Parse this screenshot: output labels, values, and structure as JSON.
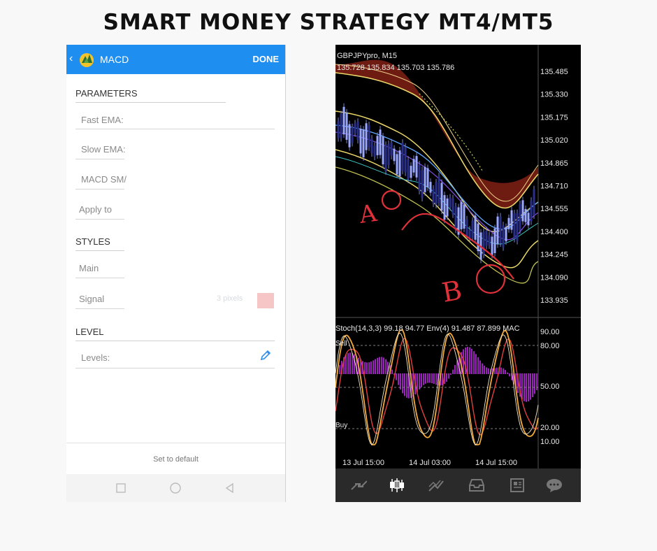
{
  "headline": "SMART MONEY STRATEGY MT4/MT5",
  "settings": {
    "back_icon": "chevron-left-icon",
    "app_icon": "metatrader-logo-icon",
    "title": "MACD",
    "done_label": "DONE",
    "accent_color": "#1f8ef1",
    "sections": {
      "parameters": "PARAMETERS",
      "styles": "STYLES",
      "level": "LEVEL"
    },
    "fields": {
      "fast_ema": "Fast EMA:",
      "slow_ema": "Slow EMA:",
      "macd_sma": "MACD SM/",
      "apply_to": "Apply to",
      "main": "Main",
      "signal": "Signal",
      "signal_width": "3 pixels",
      "levels": "Levels:"
    },
    "edit_icon": "pencil-icon",
    "set_default": "Set to default",
    "nav": [
      "square-icon",
      "circle-icon",
      "triangle-back-icon"
    ]
  },
  "chart": {
    "symbol": "GBPJPYpro, M15",
    "ohlc": "135.728 135.834 135.703 135.786",
    "price_ticks": [
      "135.485",
      "135.330",
      "135.175",
      "135.020",
      "134.865",
      "134.710",
      "134.555",
      "134.400",
      "134.245",
      "134.090",
      "133.935"
    ],
    "annotation_a": "A",
    "annotation_b": "B",
    "indicator_header": "Stoch(14,3,3) 99.18 94.77 Env(4) 91.487 87.899 MAC",
    "sell_label": "Sell",
    "buy_label": "Buy",
    "osc_ticks": [
      "90.00",
      "80.00",
      "50.00",
      "20.00",
      "10.00"
    ],
    "time_ticks": [
      "13 Jul 15:00",
      "14 Jul 03:00",
      "14 Jul 15:00"
    ],
    "toolbar_icons": [
      "quotes-icon",
      "candlestick-chart-icon",
      "trade-icon",
      "history-inbox-icon",
      "news-icon",
      "chat-icon"
    ],
    "accent_colors": {
      "annotation": "#e0313a",
      "stoch_main": "#f2a93b",
      "stoch_signal": "#e24040",
      "histogram": "#b42ad8",
      "envelope": "#e8e86a"
    }
  }
}
